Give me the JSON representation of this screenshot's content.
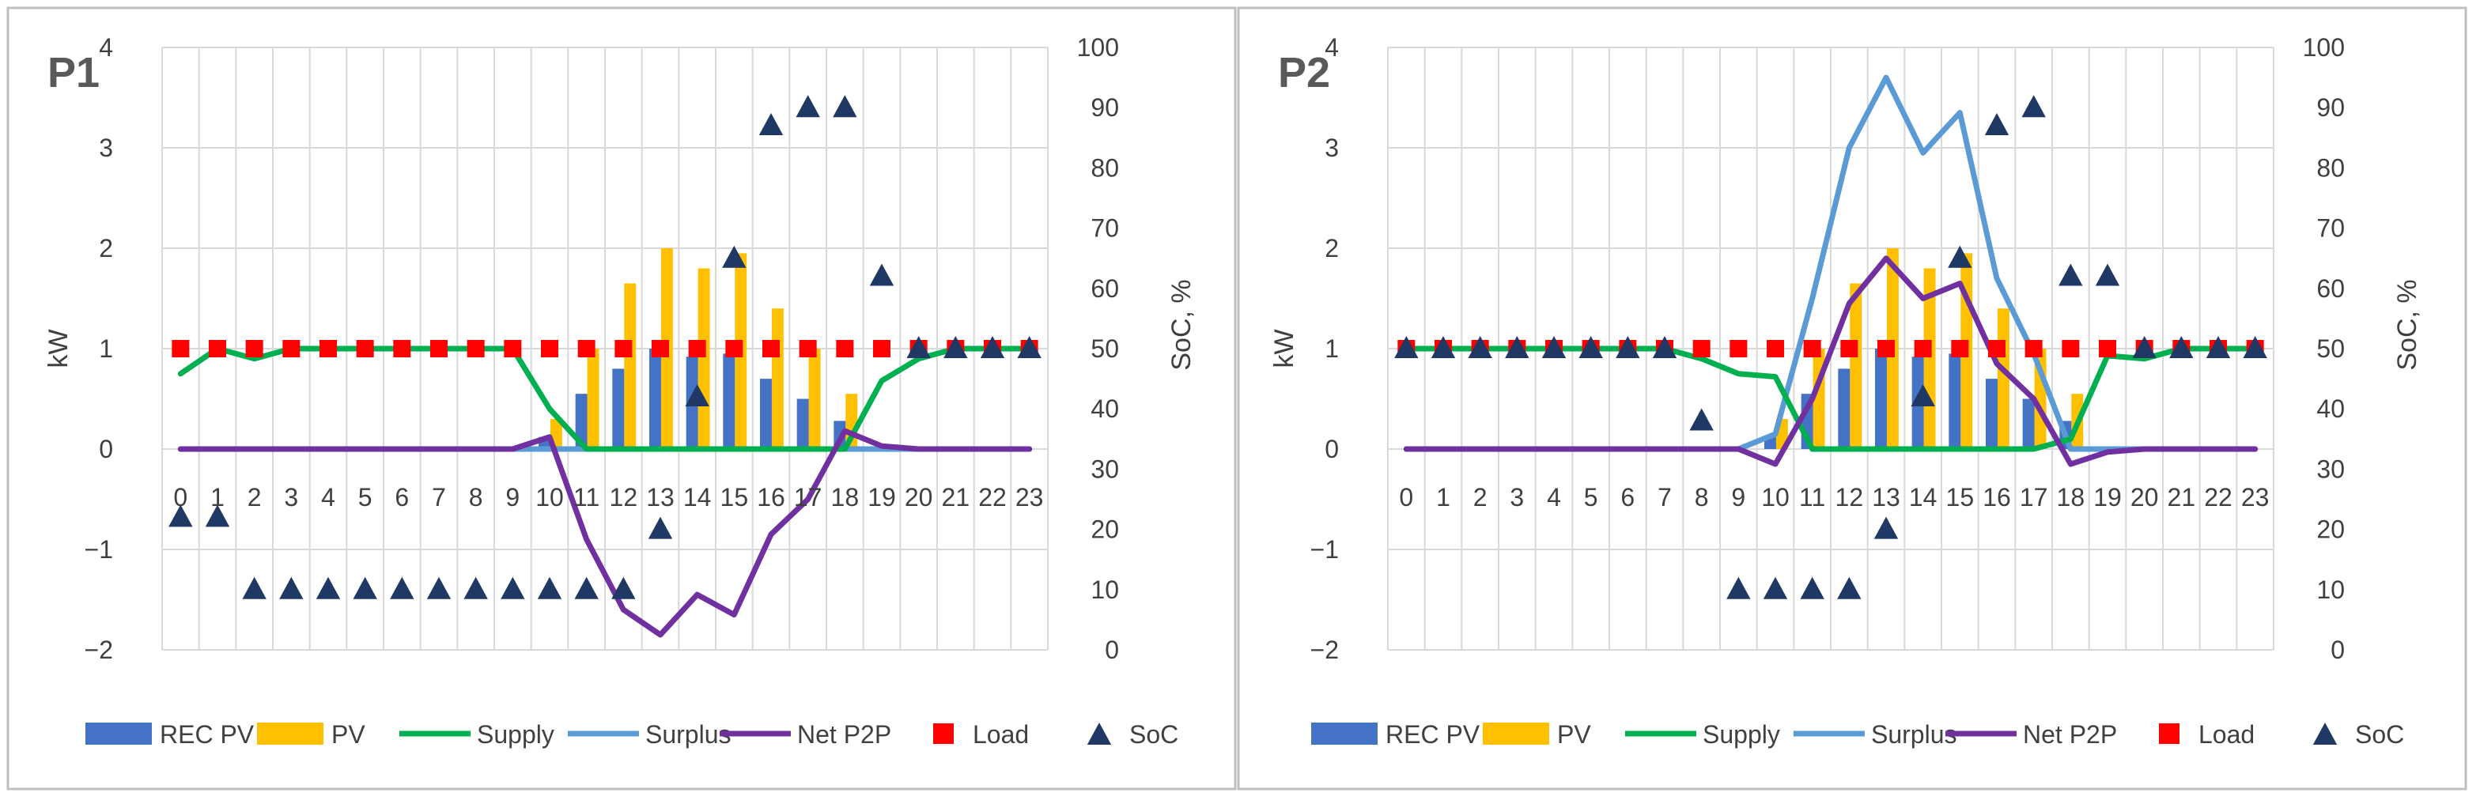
{
  "colors": {
    "rec_pv": "#4472C4",
    "pv": "#FFC000",
    "supply": "#00B050",
    "surplus": "#5B9BD5",
    "net_p2p": "#7030A0",
    "load": "#FF0000",
    "soc": "#1F3864",
    "grid": "#D9D9D9",
    "axis_text": "#404040",
    "frame": "#BFBFBF"
  },
  "chart_data": [
    {
      "type": "bar",
      "title": "P1",
      "xlabel": "",
      "ylabel": "kW",
      "y2label": "SoC, %",
      "ylim": [
        -2,
        4
      ],
      "y2lim": [
        0,
        100
      ],
      "yticks": [
        "−2",
        "−1",
        "0",
        "1",
        "2",
        "3",
        "4"
      ],
      "y2ticks": [
        "0",
        "10",
        "20",
        "30",
        "40",
        "50",
        "60",
        "70",
        "80",
        "90",
        "100"
      ],
      "categories": [
        "0",
        "1",
        "2",
        "3",
        "4",
        "5",
        "6",
        "7",
        "8",
        "9",
        "10",
        "11",
        "12",
        "13",
        "14",
        "15",
        "16",
        "17",
        "18",
        "19",
        "20",
        "21",
        "22",
        "23"
      ],
      "legend": [
        "REC PV",
        "PV",
        "Supply",
        "Surplus",
        "Net P2P",
        "Load",
        "SoC"
      ],
      "series": [
        {
          "name": "REC PV",
          "kind": "bar",
          "axis": "left",
          "values": [
            0,
            0,
            0,
            0,
            0,
            0,
            0,
            0,
            0,
            0,
            0.12,
            0.55,
            0.8,
            1.0,
            0.92,
            0.95,
            0.7,
            0.5,
            0.28,
            0,
            0,
            0,
            0,
            0
          ]
        },
        {
          "name": "PV",
          "kind": "bar",
          "axis": "left",
          "values": [
            0,
            0,
            0,
            0,
            0,
            0,
            0,
            0,
            0,
            0,
            0.3,
            1.0,
            1.65,
            2.0,
            1.8,
            1.95,
            1.4,
            1.0,
            0.55,
            0,
            0,
            0,
            0,
            0
          ]
        },
        {
          "name": "Supply",
          "kind": "line",
          "axis": "left",
          "values": [
            0.75,
            1.0,
            0.9,
            1.0,
            1.0,
            1.0,
            1.0,
            1.0,
            1.0,
            1.0,
            0.4,
            0,
            0,
            0,
            0,
            0,
            0,
            0,
            0,
            0.68,
            0.9,
            1.0,
            1.0,
            1.0
          ]
        },
        {
          "name": "Surplus",
          "kind": "line",
          "axis": "left",
          "values": [
            0,
            0,
            0,
            0,
            0,
            0,
            0,
            0,
            0,
            0,
            0,
            0,
            0,
            0,
            0,
            0,
            0,
            0,
            0,
            0,
            0,
            0,
            0,
            0
          ]
        },
        {
          "name": "Net P2P",
          "kind": "line",
          "axis": "left",
          "values": [
            0,
            0,
            0,
            0,
            0,
            0,
            0,
            0,
            0,
            0,
            0.12,
            -0.9,
            -1.6,
            -1.85,
            -1.45,
            -1.65,
            -0.85,
            -0.5,
            0.18,
            0.03,
            0,
            0,
            0,
            0
          ]
        },
        {
          "name": "Load",
          "kind": "marker-square",
          "axis": "left",
          "values": [
            1,
            1,
            1,
            1,
            1,
            1,
            1,
            1,
            1,
            1,
            1,
            1,
            1,
            1,
            1,
            1,
            1,
            1,
            1,
            1,
            1,
            1,
            1,
            1
          ]
        },
        {
          "name": "SoC",
          "kind": "marker-triangle",
          "axis": "right",
          "values": [
            22,
            22,
            10,
            10,
            10,
            10,
            10,
            10,
            10,
            10,
            10,
            10,
            10,
            20,
            42,
            65,
            87,
            90,
            90,
            62,
            50,
            50,
            50,
            50
          ]
        }
      ]
    },
    {
      "type": "bar",
      "title": "P2",
      "xlabel": "",
      "ylabel": "kW",
      "y2label": "SoC, %",
      "ylim": [
        -2,
        4
      ],
      "y2lim": [
        0,
        100
      ],
      "yticks": [
        "−2",
        "−1",
        "0",
        "1",
        "2",
        "3",
        "4"
      ],
      "y2ticks": [
        "0",
        "10",
        "20",
        "30",
        "40",
        "50",
        "60",
        "70",
        "80",
        "90",
        "100"
      ],
      "categories": [
        "0",
        "1",
        "2",
        "3",
        "4",
        "5",
        "6",
        "7",
        "8",
        "9",
        "10",
        "11",
        "12",
        "13",
        "14",
        "15",
        "16",
        "17",
        "18",
        "19",
        "20",
        "21",
        "22",
        "23"
      ],
      "legend": [
        "REC PV",
        "PV",
        "Supply",
        "Surplus",
        "Net P2P",
        "Load",
        "SoC"
      ],
      "series": [
        {
          "name": "REC PV",
          "kind": "bar",
          "axis": "left",
          "values": [
            0,
            0,
            0,
            0,
            0,
            0,
            0,
            0,
            0,
            0,
            0.12,
            0.55,
            0.8,
            1.0,
            0.92,
            0.95,
            0.7,
            0.5,
            0.28,
            0,
            0,
            0,
            0,
            0
          ]
        },
        {
          "name": "PV",
          "kind": "bar",
          "axis": "left",
          "values": [
            0,
            0,
            0,
            0,
            0,
            0,
            0,
            0,
            0,
            0,
            0.3,
            1.0,
            1.65,
            2.0,
            1.8,
            1.95,
            1.4,
            1.0,
            0.55,
            0,
            0,
            0,
            0,
            0
          ]
        },
        {
          "name": "Supply",
          "kind": "line",
          "axis": "left",
          "values": [
            1.0,
            1.0,
            1.0,
            1.0,
            1.0,
            1.0,
            1.0,
            1.0,
            0.9,
            0.75,
            0.72,
            0,
            0,
            0,
            0,
            0,
            0,
            0,
            0.1,
            0.93,
            0.9,
            1.0,
            1.0,
            1.0
          ]
        },
        {
          "name": "Surplus",
          "kind": "line",
          "axis": "left",
          "values": [
            0,
            0,
            0,
            0,
            0,
            0,
            0,
            0,
            0,
            0,
            0.15,
            1.5,
            3.0,
            3.7,
            2.95,
            3.35,
            1.7,
            0.95,
            0,
            0,
            0,
            0,
            0,
            0
          ]
        },
        {
          "name": "Net P2P",
          "kind": "line",
          "axis": "left",
          "values": [
            0,
            0,
            0,
            0,
            0,
            0,
            0,
            0,
            0,
            0,
            -0.15,
            0.5,
            1.45,
            1.9,
            1.5,
            1.65,
            0.85,
            0.5,
            -0.15,
            -0.03,
            0,
            0,
            0,
            0
          ]
        },
        {
          "name": "Load",
          "kind": "marker-square",
          "axis": "left",
          "values": [
            1,
            1,
            1,
            1,
            1,
            1,
            1,
            1,
            1,
            1,
            1,
            1,
            1,
            1,
            1,
            1,
            1,
            1,
            1,
            1,
            1,
            1,
            1,
            1
          ]
        },
        {
          "name": "SoC",
          "kind": "marker-triangle",
          "axis": "right",
          "values": [
            50,
            50,
            50,
            50,
            50,
            50,
            50,
            50,
            38,
            10,
            10,
            10,
            10,
            20,
            42,
            65,
            87,
            90,
            62,
            62,
            50,
            50,
            50,
            50
          ]
        }
      ]
    }
  ]
}
